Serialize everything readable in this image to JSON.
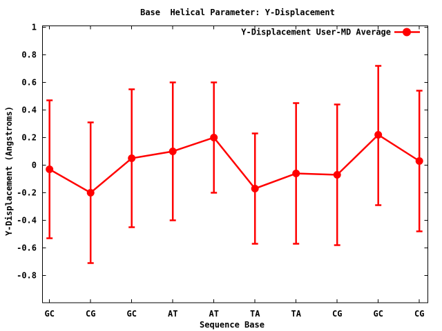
{
  "chart_data": {
    "type": "line",
    "title": "Base  Helical Parameter: Y-Displacement",
    "xlabel": "Sequence Base",
    "ylabel": "Y-Displacement (Angstroms)",
    "categories": [
      "GC",
      "CG",
      "GC",
      "AT",
      "AT",
      "TA",
      "TA",
      "CG",
      "GC",
      "CG"
    ],
    "series": [
      {
        "name": "Y-Displacement User-MD Average",
        "values": [
          -0.03,
          -0.2,
          0.05,
          0.1,
          0.2,
          -0.17,
          -0.06,
          -0.07,
          0.22,
          0.03
        ],
        "error_high": [
          0.47,
          0.31,
          0.55,
          0.6,
          0.6,
          0.23,
          0.45,
          0.44,
          0.72,
          0.54
        ],
        "error_low": [
          -0.53,
          -0.71,
          -0.45,
          -0.4,
          -0.2,
          -0.57,
          -0.57,
          -0.58,
          -0.29,
          -0.48
        ]
      }
    ],
    "yticks": [
      1,
      0.8,
      0.6,
      0.4,
      0.2,
      0,
      -0.2,
      -0.4,
      -0.6,
      -0.8
    ],
    "ytick_labels": [
      "1",
      "0.8",
      "0.6",
      "0.4",
      "0.2",
      "0",
      "-0.2",
      "-0.4",
      "-0.6",
      "-0.8"
    ],
    "ylim": [
      -1,
      1.01
    ],
    "grid": false,
    "legend_position": "top-right-inside",
    "marker": "filled-circle",
    "colors": {
      "series": "#ff0000",
      "text": "#000000",
      "border": "#000000",
      "background": "#ffffff"
    }
  }
}
